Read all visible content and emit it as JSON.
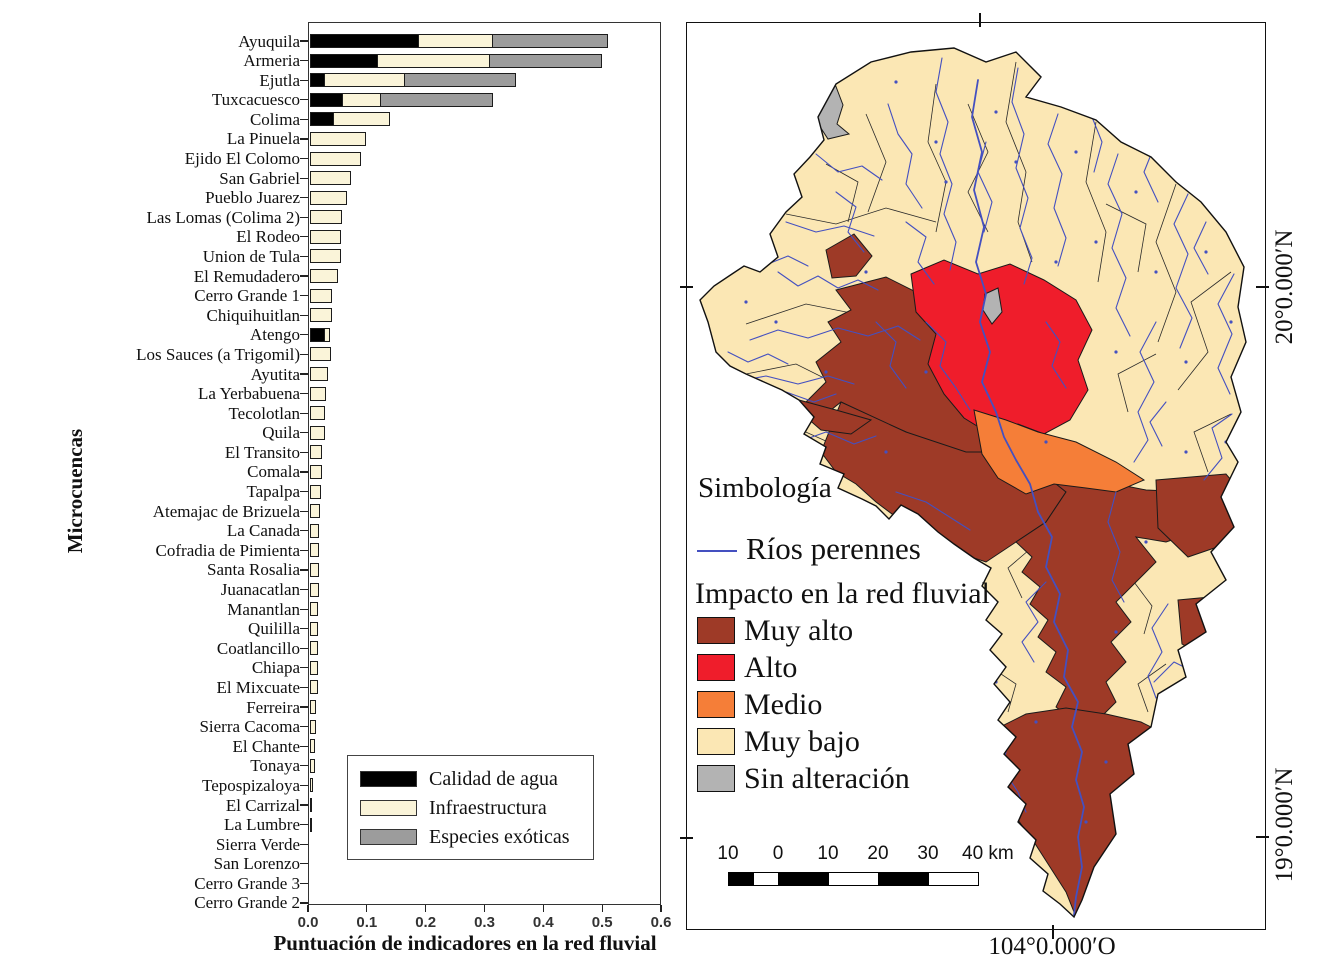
{
  "colors": {
    "muy_alto": "#9E3A27",
    "alto": "#EF1D2B",
    "medio": "#F57E38",
    "muy_bajo": "#FBE7B4",
    "sin_alteracion": "#B3B3B3",
    "river": "#4450C0",
    "bar_black": "#000000",
    "bar_cream": "#FAF4D9",
    "bar_gray": "#9C9C9C"
  },
  "chart_data": {
    "type": "bar",
    "orientation": "horizontal",
    "stacked": true,
    "xlabel": "Puntuación de indicadores en la red fluvial",
    "ylabel": "Microcuencas",
    "xlim": [
      0,
      0.6
    ],
    "xticks": [
      0,
      0.1,
      0.2,
      0.3,
      0.4,
      0.5,
      0.6
    ],
    "grid": false,
    "legend_position": "inside lower right",
    "categories": [
      "Ayuquila",
      "Armeria",
      "Ejutla",
      "Tuxcacuesco",
      "Colima",
      "La Pinuela",
      "Ejido El Colomo",
      "San Gabriel",
      "Pueblo Juarez",
      "Las Lomas (Colima 2)",
      "El Rodeo",
      "Union de Tula",
      "El Remudadero",
      "Cerro Grande 1",
      "Chiquihuitlan",
      "Atengo",
      "Los Sauces (a Trigomil)",
      "Ayutita",
      "La Yerbabuena",
      "Tecolotlan",
      "Quila",
      "El Transito",
      "Comala",
      "Tapalpa",
      "Atemajac de Brizuela",
      "La Canada",
      "Cofradia de Pimienta",
      "Santa Rosalia",
      "Juanacatlan",
      "Manantlan",
      "Quililla",
      "Coatlancillo",
      "Chiapa",
      "El Mixcuate",
      "Ferreira",
      "Sierra Cacoma",
      "El Chante",
      "Tonaya",
      "Tepospizaloya",
      "El Carrizal",
      "La Lumbre",
      "Sierra Verde",
      "San Lorenzo",
      "Cerro Grande 3",
      "Cerro Grande 2"
    ],
    "series": [
      {
        "name": "Calidad de agua",
        "color": "#000000",
        "values": [
          0.185,
          0.115,
          0.025,
          0.055,
          0.04,
          0,
          0,
          0,
          0,
          0,
          0,
          0,
          0,
          0,
          0,
          0.025,
          0,
          0,
          0,
          0,
          0,
          0,
          0,
          0,
          0,
          0,
          0,
          0,
          0,
          0,
          0,
          0,
          0,
          0,
          0,
          0,
          0,
          0,
          0,
          0,
          0,
          0,
          0,
          0,
          0
        ]
      },
      {
        "name": "Infraestructura",
        "color": "#FAF4D9",
        "values": [
          0.125,
          0.19,
          0.135,
          0.065,
          0.095,
          0.095,
          0.085,
          0.068,
          0.062,
          0.053,
          0.052,
          0.052,
          0.047,
          0.037,
          0.037,
          0.008,
          0.034,
          0.029,
          0.026,
          0.025,
          0.024,
          0.02,
          0.019,
          0.017,
          0.016,
          0.015,
          0.014,
          0.014,
          0.014,
          0.013,
          0.013,
          0.013,
          0.012,
          0.012,
          0.01,
          0.009,
          0.008,
          0.008,
          0.005,
          0.003,
          0.002,
          0.001,
          0.001,
          0,
          0
        ]
      },
      {
        "name": "Especies exóticas",
        "color": "#9C9C9C",
        "values": [
          0.195,
          0.19,
          0.19,
          0.19,
          0,
          0,
          0,
          0,
          0,
          0,
          0,
          0,
          0,
          0,
          0,
          0,
          0,
          0,
          0,
          0,
          0,
          0,
          0,
          0,
          0,
          0,
          0,
          0,
          0,
          0,
          0,
          0,
          0,
          0,
          0,
          0,
          0,
          0,
          0,
          0,
          0,
          0,
          0,
          0,
          0
        ]
      }
    ]
  },
  "map": {
    "legend": {
      "title": "Simbología",
      "rivers_label": "Ríos perennes",
      "impact_title": "Impacto en la red fluvial",
      "classes": [
        {
          "label": "Muy alto",
          "color": "#9E3A27"
        },
        {
          "label": "Alto",
          "color": "#EF1D2B"
        },
        {
          "label": "Medio",
          "color": "#F57E38"
        },
        {
          "label": "Muy bajo",
          "color": "#FBE7B4"
        },
        {
          "label": "Sin alteración",
          "color": "#B3B3B3"
        }
      ]
    },
    "scalebar": {
      "labels": [
        "10",
        "0",
        "10",
        "20",
        "30"
      ],
      "unit_label": "40 km"
    },
    "coordinates": {
      "lat_upper": "20°0.000′N",
      "lat_lower": "19°0.000′N",
      "lon_bottom": "104°0.000′O"
    }
  }
}
